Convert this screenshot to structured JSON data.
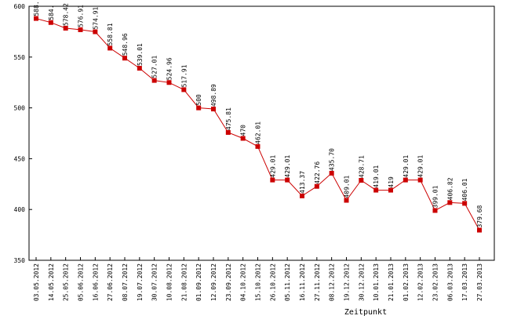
{
  "chart_data": {
    "type": "line",
    "xlabel": "Zeitpunkt",
    "ylabel": "",
    "ylim": [
      350,
      600
    ],
    "yticks": [
      350,
      400,
      450,
      500,
      550,
      600
    ],
    "ytick_labels": [
      "350",
      "400",
      "450",
      "500",
      "550",
      "600"
    ],
    "grid": false,
    "legend": "none",
    "colors": {
      "line": "#cc0000",
      "marker": "#cc0000",
      "frame": "#000000"
    },
    "categories": [
      "03.05.2012",
      "14.05.2012",
      "25.05.2012",
      "05.06.2012",
      "16.06.2012",
      "27.06.2012",
      "08.07.2012",
      "19.07.2012",
      "30.07.2012",
      "10.08.2012",
      "21.08.2012",
      "01.09.2012",
      "12.09.2012",
      "23.09.2012",
      "04.10.2012",
      "15.10.2012",
      "26.10.2012",
      "05.11.2012",
      "16.11.2012",
      "27.11.2012",
      "08.12.2012",
      "19.12.2012",
      "30.12.2012",
      "10.01.2013",
      "21.01.2013",
      "01.02.2013",
      "12.02.2013",
      "23.02.2013",
      "06.03.2013",
      "17.03.2013",
      "27.03.2013"
    ],
    "values": [
      588,
      584,
      578.42,
      576.91,
      574.91,
      558.81,
      548.96,
      539.01,
      527.01,
      524.96,
      517.91,
      500,
      498.89,
      475.81,
      470,
      462.01,
      429.01,
      429.01,
      413.37,
      422.76,
      435.7,
      409.01,
      428.71,
      419.01,
      419,
      429.01,
      429.01,
      399.01,
      406.82,
      406.01,
      379.68
    ],
    "data_labels": [
      "588.",
      "584.",
      "578.42",
      "576.91",
      "574.91",
      "558.81",
      "548.96",
      "539.01",
      "527.01",
      "524.96",
      "517.91",
      "500",
      "498.89",
      "475.81",
      "470",
      "462.01",
      "429.01",
      "429.01",
      "413.37",
      "422.76",
      "435.70",
      "409.01",
      "428.71",
      "419.01",
      "419",
      "429.01",
      "429.01",
      "399.01",
      "406.82",
      "406.01",
      "379.68"
    ]
  }
}
